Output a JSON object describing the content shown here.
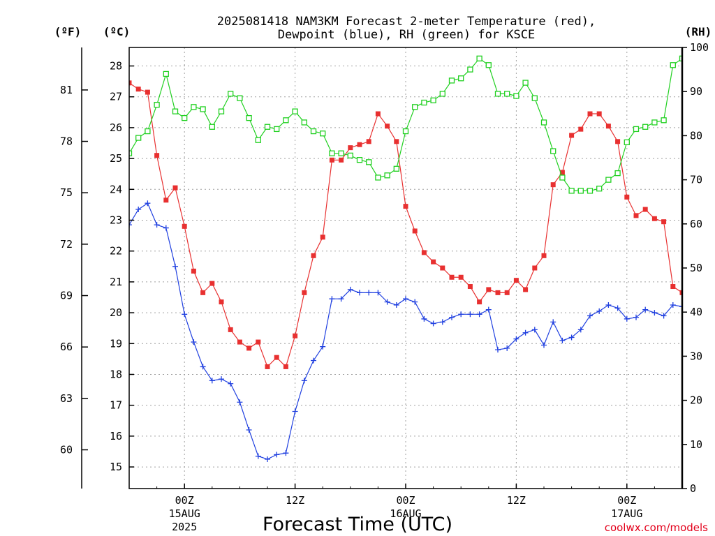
{
  "chart_data": {
    "type": "line",
    "title": "2025081418 NAM3KM Forecast 2-meter Temperature (red), Dewpoint (blue), RH (green) for KSCE",
    "title_lines": [
      "2025081418 NAM3KM Forecast 2-meter Temperature (red),",
      "Dewpoint (blue), RH (green) for KSCE"
    ],
    "xlabel": "Forecast Time (UTC)",
    "credit": "coolwx.com/models",
    "unit_labels": {
      "left_outer": "(ºF)",
      "left_inner": "(ºC)",
      "right": "(RH)"
    },
    "x_time_step_hours": 1,
    "x_start": "14AUG 18Z",
    "x_ticks": [
      {
        "label": "00Z",
        "sub": [
          "15AUG",
          "2025"
        ]
      },
      {
        "label": "12Z",
        "sub": []
      },
      {
        "label": "00Z",
        "sub": [
          "16AUG"
        ]
      },
      {
        "label": "12Z",
        "sub": []
      },
      {
        "label": "00Z",
        "sub": [
          "17AUG"
        ]
      }
    ],
    "c_axis": {
      "ticks": [
        15,
        16,
        17,
        18,
        19,
        20,
        21,
        22,
        23,
        24,
        25,
        26,
        27,
        28
      ],
      "ylim": [
        14.3,
        28.6
      ]
    },
    "f_axis": {
      "ticks": [
        60,
        63,
        66,
        69,
        72,
        75,
        78,
        81
      ]
    },
    "rh_axis": {
      "ticks": [
        0,
        10,
        20,
        30,
        40,
        50,
        60,
        70,
        80,
        90,
        100
      ],
      "ylim": [
        0,
        100
      ]
    },
    "series": [
      {
        "name": "Temperature",
        "color": "#e83030",
        "marker": "filled-square",
        "axis": "c",
        "values": [
          27.45,
          27.25,
          27.15,
          25.1,
          23.65,
          24.05,
          22.8,
          21.35,
          20.65,
          20.95,
          20.35,
          19.45,
          19.05,
          18.85,
          19.05,
          18.25,
          18.55,
          18.25,
          19.25,
          20.65,
          21.85,
          22.45,
          24.95,
          24.95,
          25.35,
          25.45,
          25.55,
          26.45,
          26.05,
          25.55,
          23.45,
          22.65,
          21.95,
          21.65,
          21.45,
          21.15,
          21.15,
          20.85,
          20.35,
          20.75,
          20.65,
          20.65,
          21.05,
          20.75,
          21.45,
          21.85,
          24.15,
          24.55,
          25.75,
          25.95,
          26.45,
          26.45,
          26.05,
          25.55,
          23.75,
          23.15,
          23.35,
          23.05,
          22.95,
          20.85,
          20.65
        ]
      },
      {
        "name": "Dewpoint",
        "color": "#2040e0",
        "marker": "plus",
        "axis": "c",
        "values": [
          22.85,
          23.35,
          23.55,
          22.85,
          22.75,
          21.5,
          19.95,
          19.05,
          18.25,
          17.8,
          17.85,
          17.7,
          17.1,
          16.2,
          15.35,
          15.25,
          15.4,
          15.45,
          16.8,
          17.8,
          18.45,
          18.9,
          20.45,
          20.45,
          20.75,
          20.65,
          20.65,
          20.65,
          20.35,
          20.25,
          20.45,
          20.35,
          19.8,
          19.65,
          19.7,
          19.85,
          19.95,
          19.95,
          19.95,
          20.1,
          18.8,
          18.85,
          19.15,
          19.35,
          19.45,
          18.95,
          19.7,
          19.1,
          19.2,
          19.45,
          19.9,
          20.05,
          20.25,
          20.15,
          19.8,
          19.85,
          20.1,
          20.0,
          19.9,
          20.25,
          20.2
        ]
      },
      {
        "name": "RH",
        "color": "#20d020",
        "marker": "open-square",
        "axis": "rh",
        "values": [
          76,
          79.5,
          81,
          87,
          94,
          85.5,
          84,
          86.5,
          86,
          82,
          85.5,
          89.5,
          88.5,
          84,
          79,
          82,
          81.5,
          83.5,
          85.5,
          83,
          81,
          80.5,
          76,
          76,
          75.5,
          74.5,
          74,
          70.5,
          71,
          72.5,
          81,
          86.5,
          87.5,
          88,
          89.5,
          92.5,
          93,
          95,
          97.5,
          96,
          89.5,
          89.5,
          89,
          92,
          88.5,
          83,
          76.5,
          70.5,
          67.5,
          67.5,
          67.5,
          68,
          70,
          71.5,
          78.5,
          81.5,
          82,
          83,
          83.5,
          96,
          97.5
        ]
      }
    ],
    "grid": true,
    "legend": "none"
  }
}
